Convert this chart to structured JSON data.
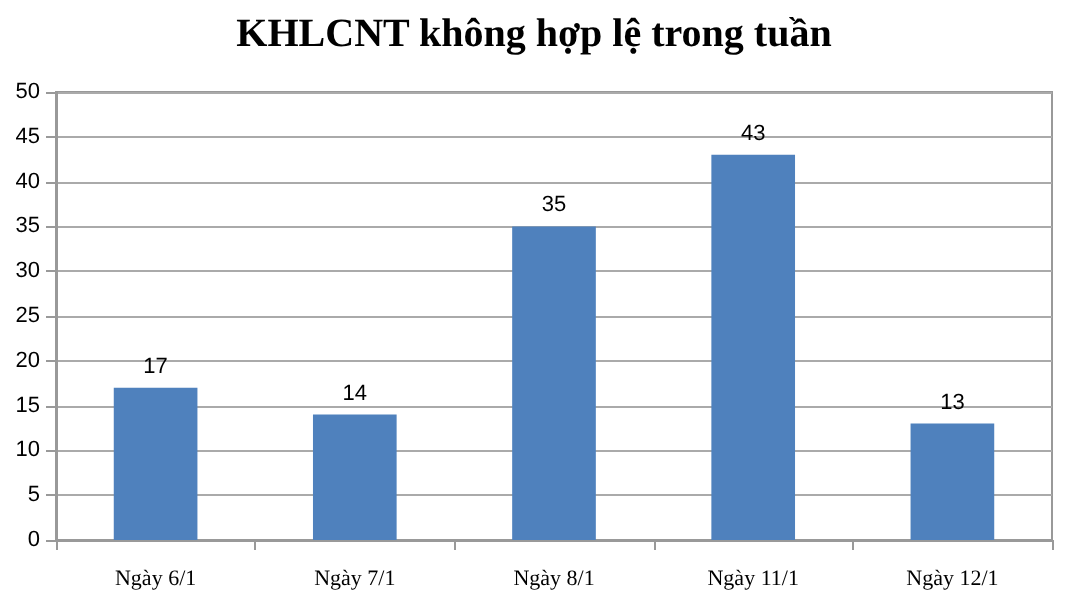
{
  "chart_data": {
    "type": "bar",
    "title": "KHLCNT không hợp lệ trong tuần",
    "categories": [
      "Ngày 6/1",
      "Ngày 7/1",
      "Ngày 8/1",
      "Ngày 11/1",
      "Ngày 12/1"
    ],
    "values": [
      17,
      14,
      35,
      43,
      13
    ],
    "color": "#4f81bd",
    "ylim": [
      0,
      50
    ],
    "yticks": [
      0,
      5,
      10,
      15,
      20,
      25,
      30,
      35,
      40,
      45,
      50
    ],
    "grid": "y",
    "data_labels": true
  }
}
